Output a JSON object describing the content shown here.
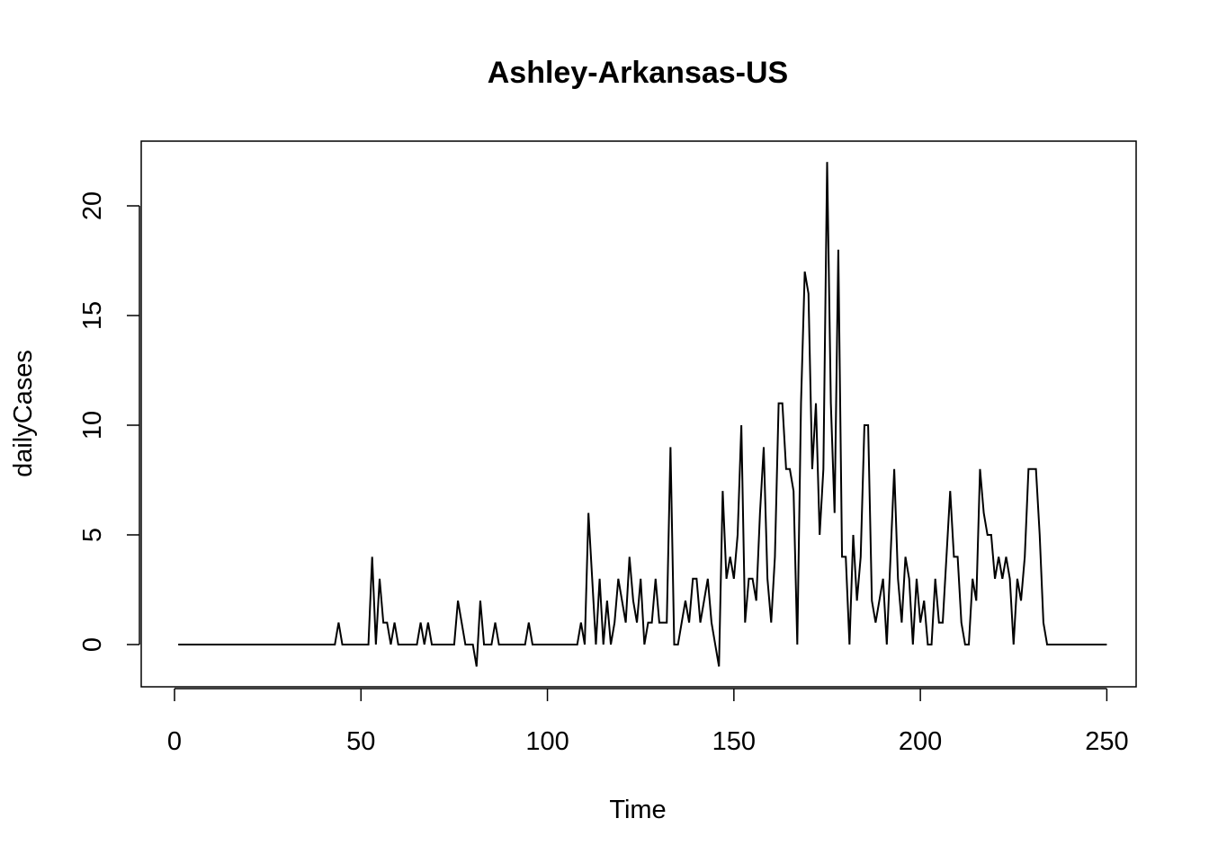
{
  "chart_data": {
    "type": "line",
    "title": "Ashley-Arkansas-US",
    "xlabel": "Time",
    "ylabel": "dailyCases",
    "xlim": [
      0,
      250
    ],
    "ylim": [
      -1,
      22
    ],
    "x_ticks": [
      0,
      50,
      100,
      150,
      200,
      250
    ],
    "y_ticks": [
      0,
      5,
      10,
      15,
      20
    ],
    "grid": false,
    "legend": "none",
    "line_color": "#000000",
    "series": [
      {
        "x_start": 1,
        "values": [
          0,
          0,
          0,
          0,
          0,
          0,
          0,
          0,
          0,
          0,
          0,
          0,
          0,
          0,
          0,
          0,
          0,
          0,
          0,
          0,
          0,
          0,
          0,
          0,
          0,
          0,
          0,
          0,
          0,
          0,
          0,
          0,
          0,
          0,
          0,
          0,
          0,
          0,
          0,
          0,
          0,
          0,
          0,
          1,
          0,
          0,
          0,
          0,
          0,
          0,
          0,
          0,
          4,
          0,
          3,
          1,
          1,
          0,
          1,
          0,
          0,
          0,
          0,
          0,
          0,
          1,
          0,
          1,
          0,
          0,
          0,
          0,
          0,
          0,
          0,
          2,
          1,
          0,
          0,
          0,
          -1,
          2,
          0,
          0,
          0,
          1,
          0,
          0,
          0,
          0,
          0,
          0,
          0,
          0,
          1,
          0,
          0,
          0,
          0,
          0,
          0,
          0,
          0,
          0,
          0,
          0,
          0,
          0,
          1,
          0,
          6,
          3,
          0,
          3,
          0,
          2,
          0,
          1,
          3,
          2,
          1,
          4,
          2,
          1,
          3,
          0,
          1,
          1,
          3,
          1,
          1,
          1,
          9,
          0,
          0,
          1,
          2,
          1,
          3,
          3,
          1,
          2,
          3,
          1,
          0,
          -1,
          7,
          3,
          4,
          3,
          5,
          10,
          1,
          3,
          3,
          2,
          6,
          9,
          3,
          1,
          4,
          11,
          11,
          8,
          8,
          7,
          0,
          11,
          17,
          16,
          8,
          11,
          5,
          8,
          22,
          11,
          6,
          18,
          4,
          4,
          0,
          5,
          2,
          4,
          10,
          10,
          2,
          1,
          2,
          3,
          0,
          4,
          8,
          3,
          1,
          4,
          3,
          0,
          3,
          1,
          2,
          0,
          0,
          3,
          1,
          1,
          4,
          7,
          4,
          4,
          1,
          0,
          0,
          3,
          2,
          8,
          6,
          5,
          5,
          3,
          4,
          3,
          4,
          3,
          0,
          3,
          2,
          4,
          8,
          8,
          8,
          5,
          1,
          0,
          0,
          0,
          0,
          0,
          0,
          0,
          0,
          0,
          0,
          0,
          0,
          0,
          0,
          0,
          0,
          0
        ]
      }
    ]
  }
}
